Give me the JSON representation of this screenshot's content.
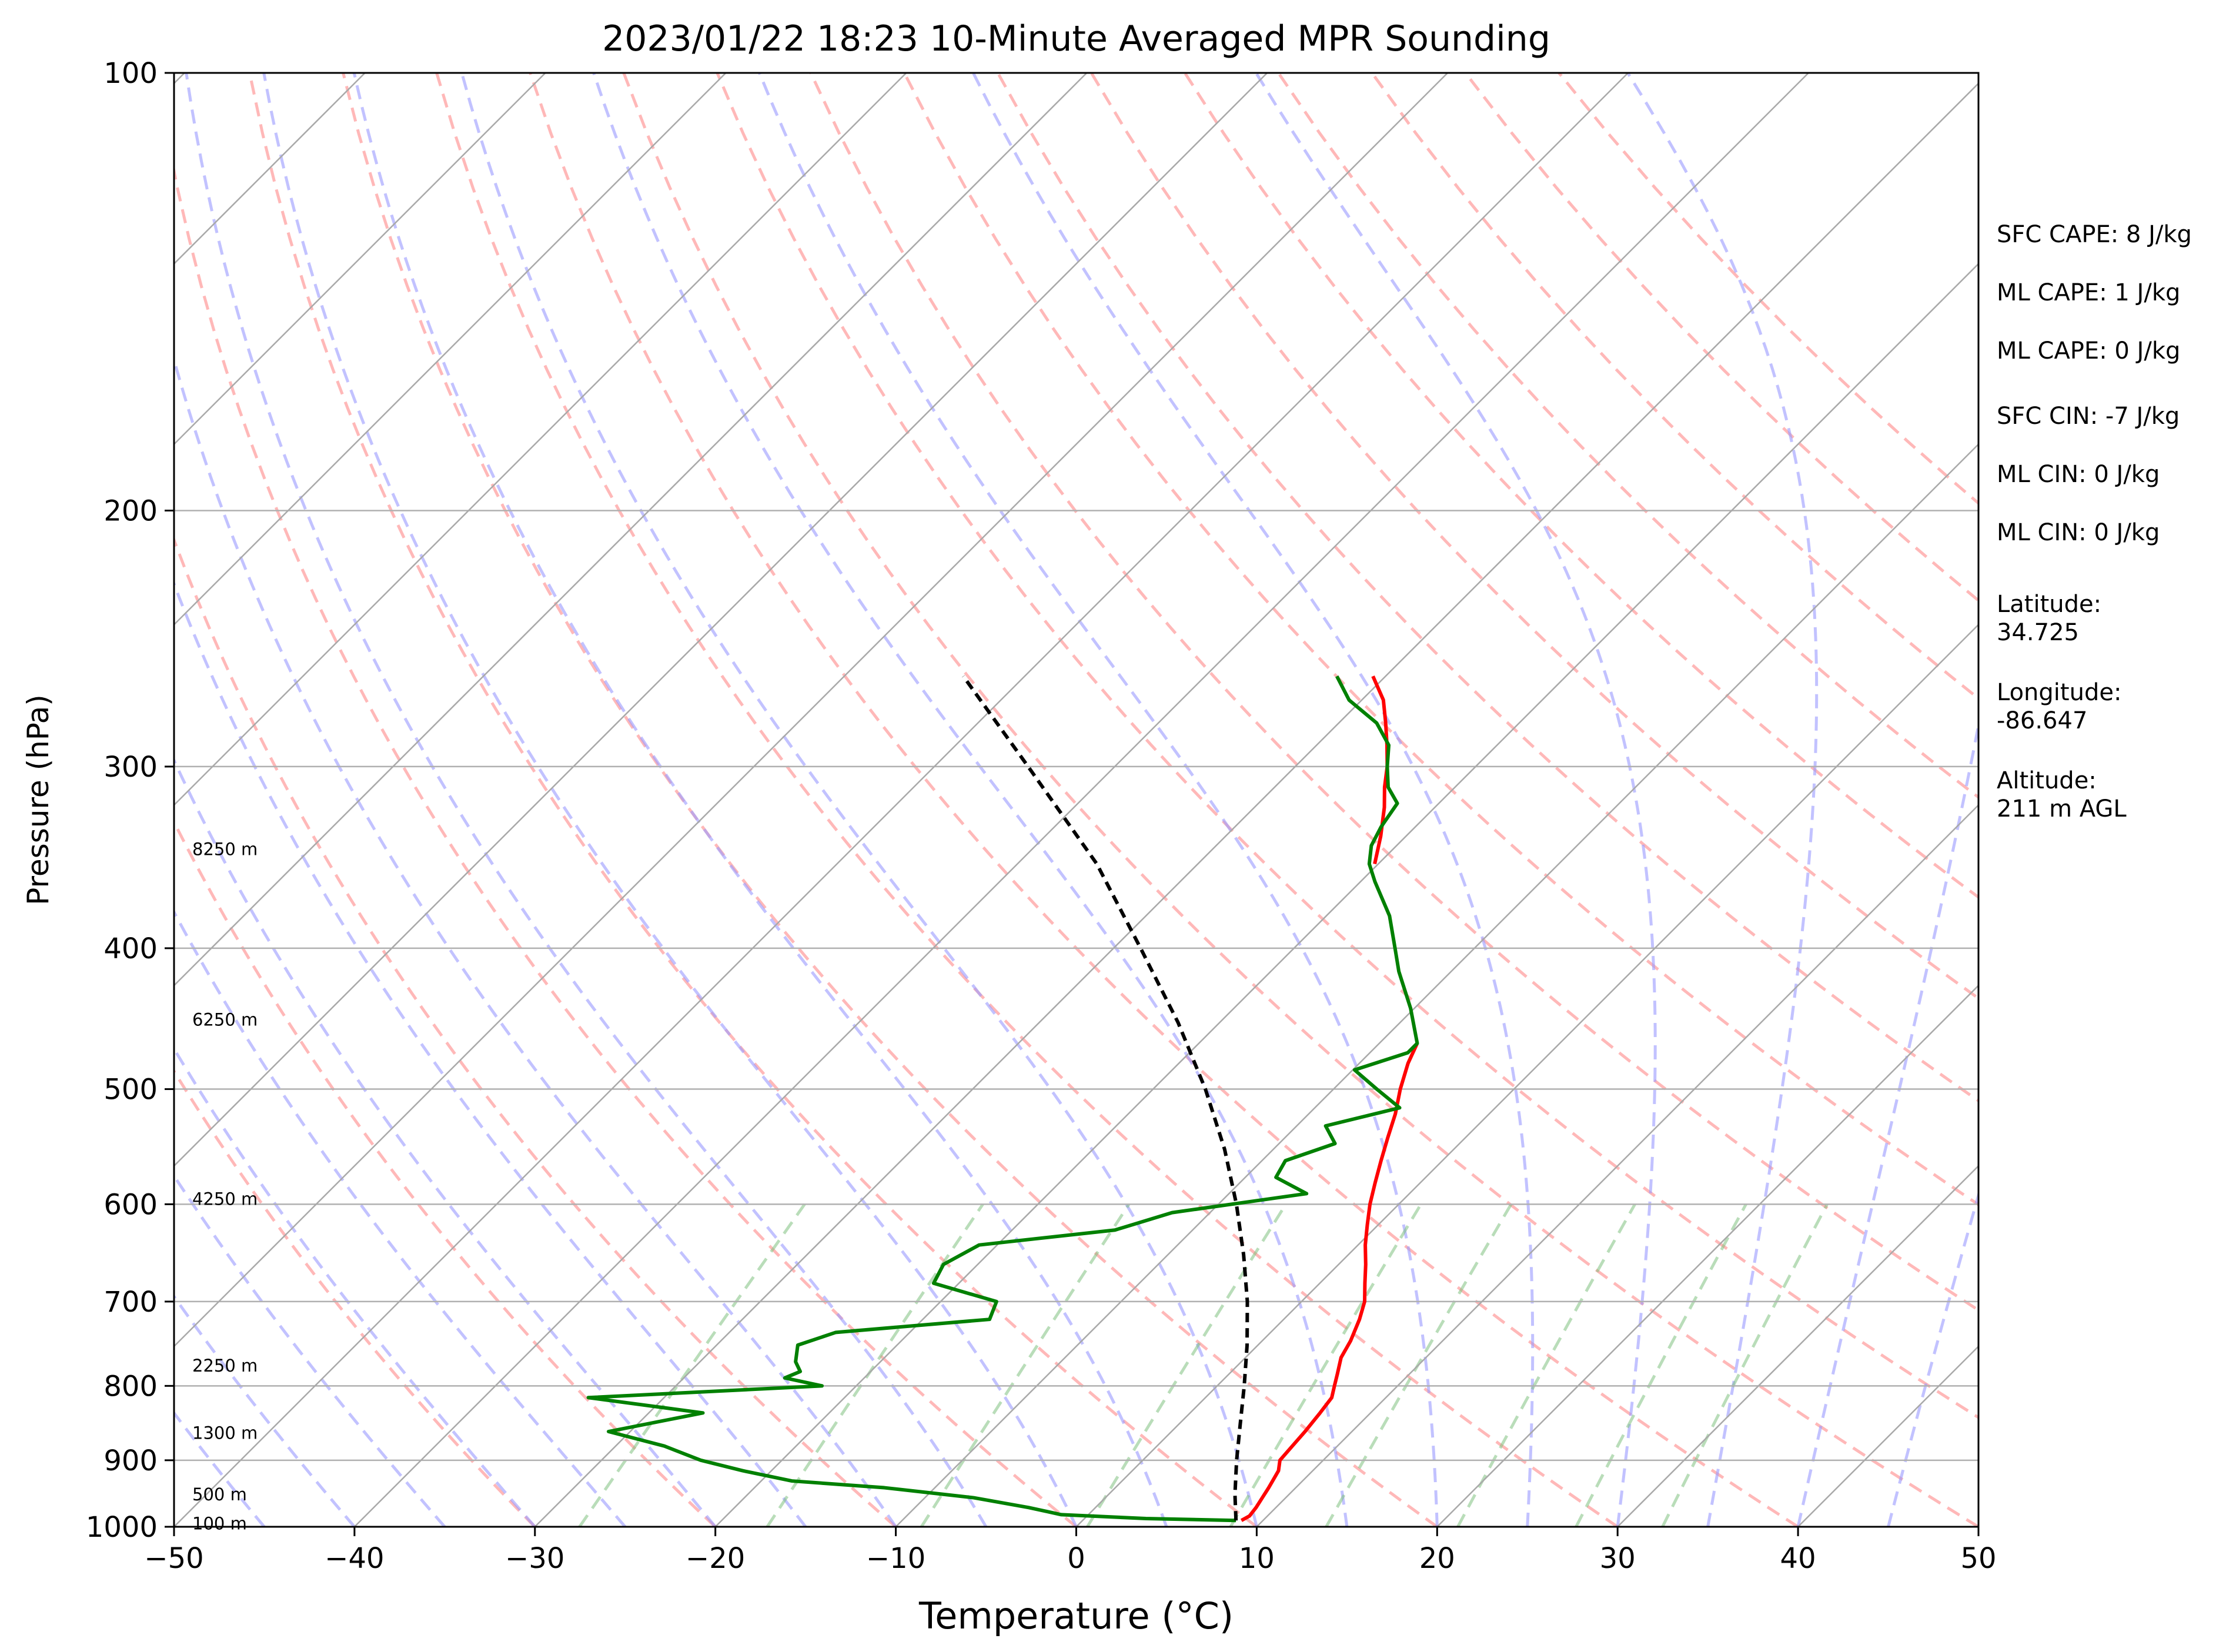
{
  "chart_data": {
    "type": "line",
    "title": "2023/01/22 18:23 10-Minute Averaged MPR Sounding",
    "xlabel": "Temperature (°C)",
    "ylabel": "Pressure (hPa)",
    "xlim": [
      -50,
      50
    ],
    "ylim": [
      1000,
      100
    ],
    "yscale": "log",
    "skew": true,
    "grid": true,
    "x_ticks": [
      -50,
      -40,
      -30,
      -20,
      -10,
      0,
      10,
      20,
      30,
      40,
      50
    ],
    "x_tick_labels": [
      "−50",
      "−40",
      "−30",
      "−20",
      "−10",
      "0",
      "10",
      "20",
      "30",
      "40",
      "50"
    ],
    "y_ticks": [
      1000,
      900,
      800,
      700,
      600,
      500,
      400,
      300,
      200,
      100
    ],
    "y_tick_labels": [
      "1000",
      "900",
      "800",
      "700",
      "600",
      "500",
      "400",
      "300",
      "200",
      "100"
    ],
    "height_labels": [
      {
        "p": 995,
        "text": "100 m"
      },
      {
        "p": 950,
        "text": "500 m"
      },
      {
        "p": 862,
        "text": "1300 m"
      },
      {
        "p": 775,
        "text": "2250 m"
      },
      {
        "p": 595,
        "text": "4250 m"
      },
      {
        "p": 448,
        "text": "6250 m"
      },
      {
        "p": 342,
        "text": "8250 m"
      }
    ],
    "stats": [
      "SFC CAPE: 8 J/kg",
      "ML CAPE: 1 J/kg",
      "ML CAPE: 0 J/kg",
      "SFC CIN: -7 J/kg",
      "ML CIN: 0 J/kg",
      "ML CIN: 0 J/kg",
      "Latitude:\n34.725",
      "Longitude:\n-86.647",
      "Altitude:\n211 m AGL"
    ],
    "series": [
      {
        "color": "#ff0000",
        "role": "temperature",
        "p": [
          990,
          983,
          970,
          955,
          940,
          915,
          900,
          880,
          860,
          835,
          815,
          800,
          785,
          765,
          745,
          720,
          700,
          680,
          660,
          640,
          620,
          600,
          580,
          560,
          540,
          520,
          500,
          480,
          465
        ],
        "t": [
          8.8,
          9.0,
          8.9,
          8.7,
          8.5,
          8.1,
          7.6,
          7.5,
          7.4,
          7.2,
          7.0,
          6.5,
          6.0,
          5.3,
          4.9,
          4.2,
          3.5,
          2.5,
          1.5,
          0.4,
          -0.6,
          -1.6,
          -2.5,
          -3.4,
          -4.3,
          -5.2,
          -6.3,
          -7.3,
          -7.9
        ]
      },
      {
        "color": "#ff0000",
        "role": "temperature",
        "p": [
          350,
          335,
          320,
          310,
          300,
          290,
          280,
          270,
          260
        ],
        "t": [
          -20.2,
          -21.4,
          -22.8,
          -23.9,
          -24.9,
          -26.1,
          -27.4,
          -28.8,
          -30.7
        ]
      },
      {
        "color": "#008000",
        "role": "dewpoint",
        "p": [
          990,
          987,
          981,
          970,
          955,
          940,
          930,
          915,
          900,
          880,
          860,
          835,
          815,
          800,
          790,
          782,
          770,
          750,
          735,
          720,
          700,
          680,
          660,
          640,
          625,
          608,
          590,
          575,
          560,
          545,
          530,
          515,
          500,
          485,
          472,
          465,
          440,
          415,
          400,
          380,
          360,
          350,
          340,
          330,
          318,
          310,
          300,
          290,
          280,
          270,
          260
        ],
        "t": [
          8.5,
          3.4,
          -1.5,
          -3.7,
          -7.3,
          -12.8,
          -18.3,
          -21.6,
          -24.5,
          -27.3,
          -31.2,
          -27.0,
          -34.2,
          -21.9,
          -24.4,
          -23.9,
          -24.7,
          -25.5,
          -24.1,
          -16.3,
          -16.9,
          -21.4,
          -21.9,
          -21.0,
          -14.3,
          -12.1,
          -5.7,
          -8.3,
          -8.7,
          -6.9,
          -8.4,
          -5.3,
          -7.6,
          -9.9,
          -7.9,
          -7.9,
          -10.2,
          -12.9,
          -14.4,
          -16.5,
          -19.2,
          -20.5,
          -21.4,
          -21.9,
          -22.3,
          -23.7,
          -24.9,
          -26.0,
          -27.9,
          -30.7,
          -32.7
        ]
      },
      {
        "color": "#000000",
        "role": "parcel",
        "dashed": true,
        "p": [
          990,
          950,
          900,
          850,
          800,
          750,
          700,
          650,
          600,
          550,
          500,
          450,
          400,
          350,
          300,
          260
        ],
        "t": [
          8.5,
          7.0,
          5.2,
          3.4,
          1.5,
          -0.6,
          -3.0,
          -5.8,
          -9.0,
          -12.7,
          -17.1,
          -22.3,
          -28.5,
          -35.6,
          -44.8,
          -53.4
        ]
      }
    ]
  }
}
